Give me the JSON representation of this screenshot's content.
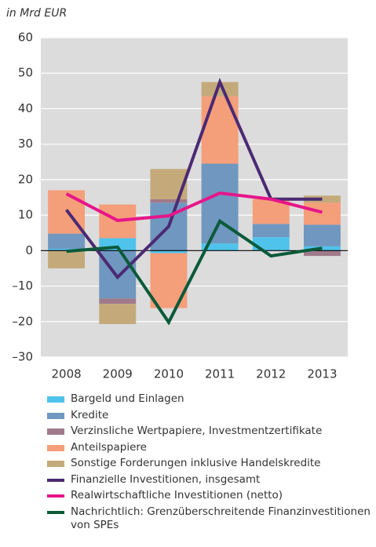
{
  "chart_data": {
    "type": "bar",
    "subtitle": "in Mrd EUR",
    "categories": [
      "2008",
      "2009",
      "2010",
      "2011",
      "2012",
      "2013"
    ],
    "ylim": [
      -30,
      60
    ],
    "yticks": [
      {
        "value": -30,
        "label": "–30"
      },
      {
        "value": -20,
        "label": "–20"
      },
      {
        "value": -10,
        "label": "–10"
      },
      0,
      10,
      20,
      30,
      40,
      50,
      60
    ],
    "grid": true,
    "series": [
      {
        "name": "Bargeld und Einlagen",
        "color": "#4fc3ec",
        "kind": "bar",
        "values": [
          0.5,
          3.5,
          -0.7,
          2,
          3.8,
          1.2
        ]
      },
      {
        "name": "Kredite",
        "color": "#6f97c0",
        "kind": "bar",
        "values": [
          4.3,
          -13.5,
          13.5,
          22.5,
          3.7,
          6.1
        ]
      },
      {
        "name": "Verzinsliche Wertpapiere, Investmentzertifikate",
        "color": "#a07a8a",
        "kind": "bar",
        "values": [
          0,
          -1.5,
          1,
          0,
          0,
          -1.5
        ]
      },
      {
        "name": "Anteilspapiere",
        "color": "#f59e7a",
        "kind": "bar",
        "values": [
          12.2,
          9.5,
          -15.5,
          19,
          7,
          6.2
        ]
      },
      {
        "name": "Sonstige Forderungen inklusive Handelskredite",
        "color": "#c4aa7a",
        "kind": "bar",
        "values": [
          -5,
          -5.7,
          8.5,
          4,
          0,
          2
        ]
      },
      {
        "name": "Finanzielle Investitionen, insgesamt",
        "color": "#4b2a73",
        "kind": "line",
        "values": [
          11.5,
          -7.5,
          6.8,
          47.5,
          14.5,
          14.5
        ]
      },
      {
        "name": "Realwirtschaftliche Investitionen (netto)",
        "color": "#e6168a",
        "kind": "line",
        "values": [
          16,
          8.5,
          9.8,
          16.2,
          14.5,
          10.8
        ]
      },
      {
        "name": "Nachrichtlich: Grenzüberschreitende Finanzinvestitionen von SPEs",
        "color": "#0b5a3a",
        "kind": "line",
        "values": [
          -0.2,
          1,
          -20.2,
          8.3,
          -1.5,
          0.7
        ]
      }
    ]
  }
}
